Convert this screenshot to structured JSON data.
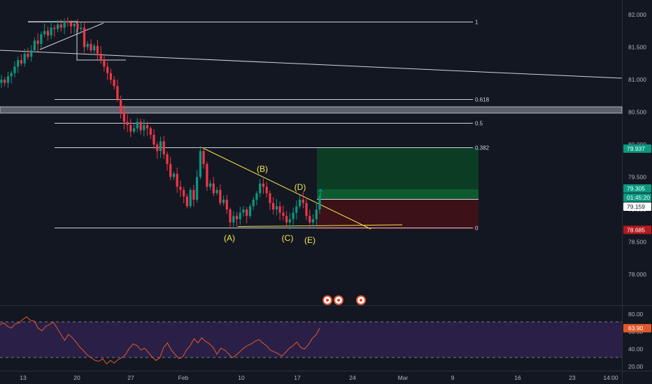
{
  "chart_data": [
    {
      "type": "candlestick",
      "price_range": [
        77.7,
        82.2
      ],
      "y_ticks": [
        "82.000",
        "81.500",
        "81.000",
        "80.500",
        "80.000",
        "79.500",
        "79.000",
        "78.500",
        "78.000"
      ],
      "y_tick_values": [
        82.0,
        81.5,
        81.0,
        80.5,
        80.0,
        79.5,
        79.0,
        78.5,
        78.0
      ],
      "x_ticks": [
        "13",
        "20",
        "27",
        "Feb",
        "10",
        "17",
        "24",
        "Mar",
        "9",
        "16",
        "23",
        "14:00"
      ],
      "fib_levels": [
        {
          "label": "1",
          "price": 81.89
        },
        {
          "label": "0.618",
          "price": 80.7
        },
        {
          "label": "0.5",
          "price": 80.33
        },
        {
          "label": "0.382",
          "price": 79.96
        },
        {
          "label": "0",
          "price": 78.72
        }
      ],
      "wave_labels": [
        "(A)",
        "(B)",
        "(C)",
        "(D)",
        "(E)"
      ],
      "price_tags": [
        {
          "label": "79.937",
          "price": 79.937,
          "color": "#089981"
        },
        {
          "label": "79.305",
          "price": 79.305,
          "color": "#089981"
        },
        {
          "label": "01:45:20",
          "price": 79.22,
          "color": "#089981"
        },
        {
          "label": "79.159",
          "price": 79.159,
          "color": "#ffffff"
        },
        {
          "label": "78.685",
          "price": 78.685,
          "color": "#b2191f"
        }
      ],
      "position": {
        "target": 79.937,
        "entry": 79.159,
        "stop": 78.685
      },
      "close_path": [
        81.0,
        80.95,
        81.05,
        81.1,
        81.2,
        81.3,
        81.25,
        81.4,
        81.35,
        81.45,
        81.6,
        81.55,
        81.7,
        81.75,
        81.68,
        81.8,
        81.78,
        81.85,
        81.8,
        81.9,
        81.88,
        81.82,
        81.86,
        81.78,
        81.8,
        81.5,
        81.55,
        81.45,
        81.52,
        81.4,
        81.3,
        81.2,
        81.1,
        81.0,
        80.9,
        80.7,
        80.5,
        80.35,
        80.3,
        80.2,
        80.25,
        80.35,
        80.22,
        80.3,
        80.25,
        80.15,
        80.0,
        79.9,
        80.05,
        79.85,
        79.7,
        79.5,
        79.55,
        79.35,
        79.3,
        79.2,
        79.05,
        79.3,
        79.15,
        79.5,
        79.9,
        79.7,
        79.35,
        79.4,
        79.25,
        79.3,
        79.1,
        79.15,
        79.0,
        78.8,
        78.9,
        78.85,
        78.95,
        79.0,
        78.9,
        79.05,
        79.15,
        79.25,
        79.4,
        79.35,
        79.25,
        79.1,
        79.0,
        79.05,
        78.95,
        78.9,
        78.8,
        78.85,
        78.95,
        79.05,
        79.15,
        79.1,
        78.9,
        78.8,
        78.85,
        79.0,
        79.2
      ],
      "rsi": {
        "y_ticks": [
          "80.00",
          "60.00",
          "40.00",
          "20.00"
        ],
        "y_tick_values": [
          80,
          60,
          40,
          20
        ],
        "current_label": "63.90",
        "current": 63.9,
        "band": [
          30,
          70
        ],
        "values": [
          68,
          70,
          66,
          64,
          69,
          70,
          74,
          77,
          73,
          72,
          64,
          61,
          66,
          68,
          71,
          64,
          57,
          50,
          57,
          53,
          48,
          42,
          38,
          33,
          30,
          27,
          26,
          29,
          23,
          27,
          24,
          28,
          30,
          34,
          41,
          46,
          44,
          39,
          41,
          36,
          31,
          27,
          30,
          42,
          47,
          39,
          34,
          29,
          31,
          39,
          44,
          52,
          47,
          53,
          49,
          46,
          42,
          34,
          41,
          39,
          35,
          30,
          33,
          37,
          41,
          44,
          46,
          49,
          51,
          47,
          44,
          39,
          37,
          35,
          32,
          36,
          41,
          44,
          48,
          42,
          40,
          45,
          52,
          56,
          63.9
        ]
      }
    }
  ],
  "colors": {
    "background": "#131722",
    "bull": "#089981",
    "bear": "#f23645",
    "rsi_line": "#e0592a",
    "rsi_band": "#2a1f47",
    "triangle": "#f5e94a",
    "target_zone": "#0b3d25",
    "stop_zone": "#3d1118"
  }
}
